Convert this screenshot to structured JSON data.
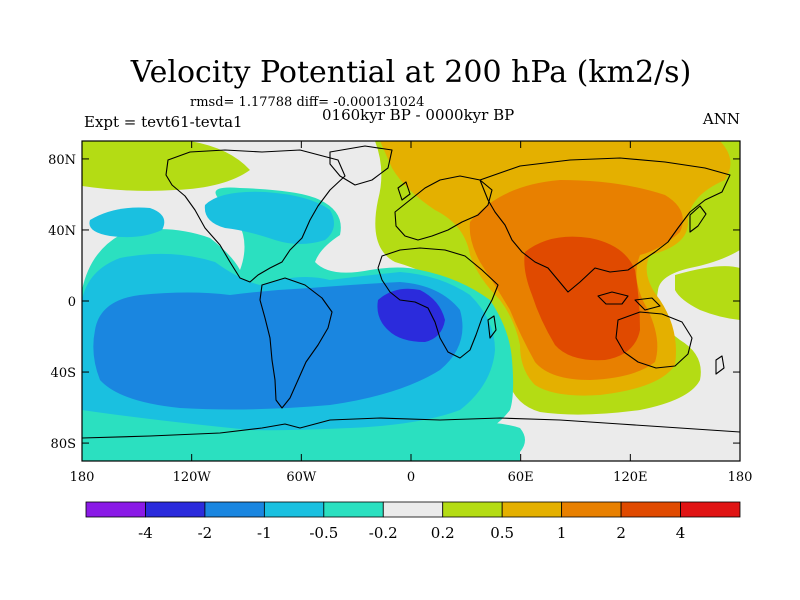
{
  "title": "Velocity Potential at 200 hPa (km2/s)",
  "stats": "rmsd= 1.17788 diff= -0.000131024",
  "expt": "Expt = tevt61-tevta1",
  "period": "0160kyr BP - 0000kyr BP",
  "season": "ANN",
  "y_ticks": [
    "80N",
    "40N",
    "0",
    "40S",
    "80S"
  ],
  "x_ticks": [
    "180",
    "120W",
    "60W",
    "0",
    "60E",
    "120E",
    "180"
  ],
  "legend": {
    "colors": [
      "#8a1ae6",
      "#2b2bdc",
      "#1a86e0",
      "#1ac0e0",
      "#2be0c0",
      "#ebebeb",
      "#b4dc14",
      "#e4b000",
      "#e88000",
      "#e04a00",
      "#e01414"
    ],
    "labels": [
      "-4",
      "-2",
      "-1",
      "-0.5",
      "-0.2",
      "0.2",
      "0.5",
      "1",
      "2",
      "4"
    ]
  },
  "colors": {
    "neutral": "#ebebeb",
    "pos_weak": "#b4dc14",
    "pos_1": "#e4b000",
    "pos_2": "#e88000",
    "pos_3": "#e04a00",
    "neg_weak": "#2be0c0",
    "neg_1": "#1ac0e0",
    "neg_2": "#1a86e0",
    "neg_3": "#2b2bdc"
  }
}
